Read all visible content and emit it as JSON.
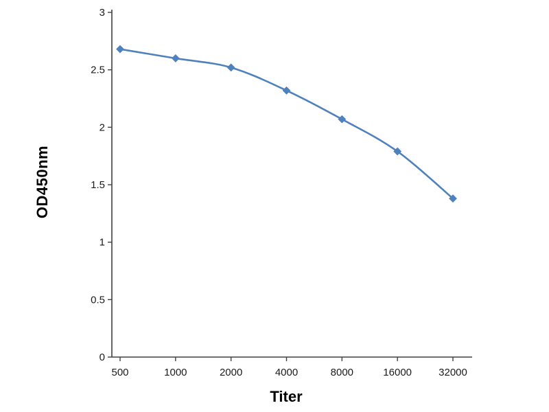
{
  "chart_data": {
    "type": "line",
    "x_scale": "log-categorical",
    "categories": [
      "500",
      "1000",
      "2000",
      "4000",
      "8000",
      "16000",
      "32000"
    ],
    "values": [
      2.68,
      2.6,
      2.52,
      2.32,
      2.07,
      1.79,
      1.38
    ],
    "title": "",
    "xlabel": "Titer",
    "ylabel": "OD450nm",
    "ylim": [
      0,
      3
    ],
    "yticks": [
      0,
      0.5,
      1,
      1.5,
      2,
      2.5,
      3
    ],
    "ytick_labels": [
      "0",
      "0.5",
      "1",
      "1.5",
      "2",
      "2.5",
      "3"
    ],
    "grid": false,
    "legend": "none",
    "line_color": "#4f81bd",
    "marker": "diamond",
    "axis_color": "#404040",
    "text_color": "#1a1a1a"
  }
}
